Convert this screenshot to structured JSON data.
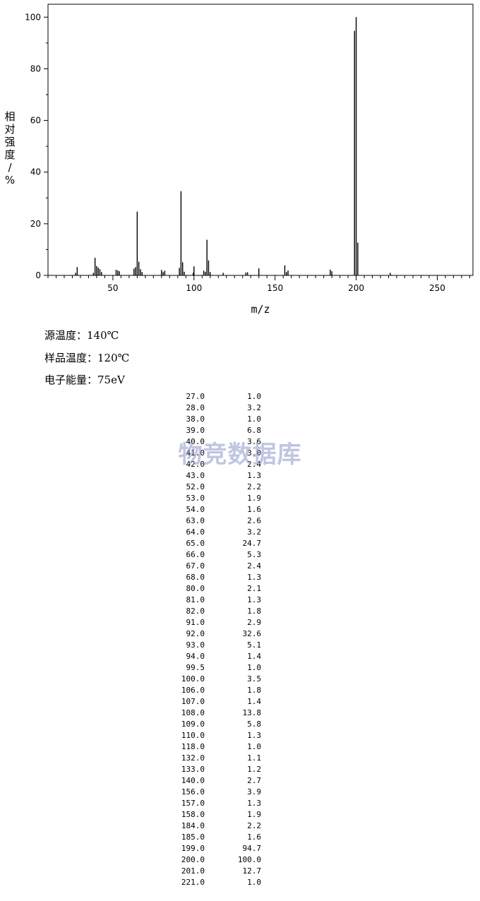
{
  "chart_data": {
    "type": "bar",
    "xlabel": "m/z",
    "ylabel": "相对强度/%",
    "xlim": [
      10,
      272
    ],
    "ylim": [
      0,
      105
    ],
    "x_ticks": [
      50,
      100,
      150,
      200,
      250
    ],
    "y_ticks": [
      0,
      20,
      40,
      60,
      80,
      100
    ],
    "x_tick_labels": [
      "50",
      "100",
      "150",
      "200",
      "250"
    ],
    "y_tick_labels": [
      "0",
      "20",
      "40",
      "60",
      "80",
      "100"
    ],
    "grid": false,
    "peaks": [
      {
        "mz": 27.0,
        "intensity": 1.0
      },
      {
        "mz": 28.0,
        "intensity": 3.2
      },
      {
        "mz": 38.0,
        "intensity": 1.0
      },
      {
        "mz": 39.0,
        "intensity": 6.8
      },
      {
        "mz": 40.0,
        "intensity": 3.6
      },
      {
        "mz": 41.0,
        "intensity": 3.0
      },
      {
        "mz": 42.0,
        "intensity": 2.4
      },
      {
        "mz": 43.0,
        "intensity": 1.3
      },
      {
        "mz": 52.0,
        "intensity": 2.2
      },
      {
        "mz": 53.0,
        "intensity": 1.9
      },
      {
        "mz": 54.0,
        "intensity": 1.6
      },
      {
        "mz": 63.0,
        "intensity": 2.6
      },
      {
        "mz": 64.0,
        "intensity": 3.2
      },
      {
        "mz": 65.0,
        "intensity": 24.7
      },
      {
        "mz": 66.0,
        "intensity": 5.3
      },
      {
        "mz": 67.0,
        "intensity": 2.4
      },
      {
        "mz": 68.0,
        "intensity": 1.3
      },
      {
        "mz": 80.0,
        "intensity": 2.1
      },
      {
        "mz": 81.0,
        "intensity": 1.3
      },
      {
        "mz": 82.0,
        "intensity": 1.8
      },
      {
        "mz": 91.0,
        "intensity": 2.9
      },
      {
        "mz": 92.0,
        "intensity": 32.6
      },
      {
        "mz": 93.0,
        "intensity": 5.1
      },
      {
        "mz": 94.0,
        "intensity": 1.4
      },
      {
        "mz": 99.5,
        "intensity": 1.0
      },
      {
        "mz": 100.0,
        "intensity": 3.5
      },
      {
        "mz": 106.0,
        "intensity": 1.8
      },
      {
        "mz": 107.0,
        "intensity": 1.4
      },
      {
        "mz": 108.0,
        "intensity": 13.8
      },
      {
        "mz": 109.0,
        "intensity": 5.8
      },
      {
        "mz": 110.0,
        "intensity": 1.3
      },
      {
        "mz": 118.0,
        "intensity": 1.0
      },
      {
        "mz": 132.0,
        "intensity": 1.1
      },
      {
        "mz": 133.0,
        "intensity": 1.2
      },
      {
        "mz": 140.0,
        "intensity": 2.7
      },
      {
        "mz": 156.0,
        "intensity": 3.9
      },
      {
        "mz": 157.0,
        "intensity": 1.3
      },
      {
        "mz": 158.0,
        "intensity": 1.9
      },
      {
        "mz": 184.0,
        "intensity": 2.2
      },
      {
        "mz": 185.0,
        "intensity": 1.6
      },
      {
        "mz": 199.0,
        "intensity": 94.7
      },
      {
        "mz": 200.0,
        "intensity": 100.0
      },
      {
        "mz": 201.0,
        "intensity": 12.7
      },
      {
        "mz": 221.0,
        "intensity": 1.0
      }
    ]
  },
  "info": {
    "source_temp": "源温度：140℃",
    "sample_temp": "样品温度：120℃",
    "electron_energy": "电子能量：75eV"
  },
  "table": {
    "rows": [
      [
        "27.0",
        "1.0"
      ],
      [
        "28.0",
        "3.2"
      ],
      [
        "38.0",
        "1.0"
      ],
      [
        "39.0",
        "6.8"
      ],
      [
        "40.0",
        "3.6"
      ],
      [
        "41.0",
        "3.0"
      ],
      [
        "42.0",
        "2.4"
      ],
      [
        "43.0",
        "1.3"
      ],
      [
        "52.0",
        "2.2"
      ],
      [
        "53.0",
        "1.9"
      ],
      [
        "54.0",
        "1.6"
      ],
      [
        "63.0",
        "2.6"
      ],
      [
        "64.0",
        "3.2"
      ],
      [
        "65.0",
        "24.7"
      ],
      [
        "66.0",
        "5.3"
      ],
      [
        "67.0",
        "2.4"
      ],
      [
        "68.0",
        "1.3"
      ],
      [
        "80.0",
        "2.1"
      ],
      [
        "81.0",
        "1.3"
      ],
      [
        "82.0",
        "1.8"
      ],
      [
        "91.0",
        "2.9"
      ],
      [
        "92.0",
        "32.6"
      ],
      [
        "93.0",
        "5.1"
      ],
      [
        "94.0",
        "1.4"
      ],
      [
        "99.5",
        "1.0"
      ],
      [
        "100.0",
        "3.5"
      ],
      [
        "106.0",
        "1.8"
      ],
      [
        "107.0",
        "1.4"
      ],
      [
        "108.0",
        "13.8"
      ],
      [
        "109.0",
        "5.8"
      ],
      [
        "110.0",
        "1.3"
      ],
      [
        "118.0",
        "1.0"
      ],
      [
        "132.0",
        "1.1"
      ],
      [
        "133.0",
        "1.2"
      ],
      [
        "140.0",
        "2.7"
      ],
      [
        "156.0",
        "3.9"
      ],
      [
        "157.0",
        "1.3"
      ],
      [
        "158.0",
        "1.9"
      ],
      [
        "184.0",
        "2.2"
      ],
      [
        "185.0",
        "1.6"
      ],
      [
        "199.0",
        "94.7"
      ],
      [
        "200.0",
        "100.0"
      ],
      [
        "201.0",
        "12.7"
      ],
      [
        "221.0",
        "1.0"
      ]
    ]
  },
  "watermark": "物竞数据库"
}
